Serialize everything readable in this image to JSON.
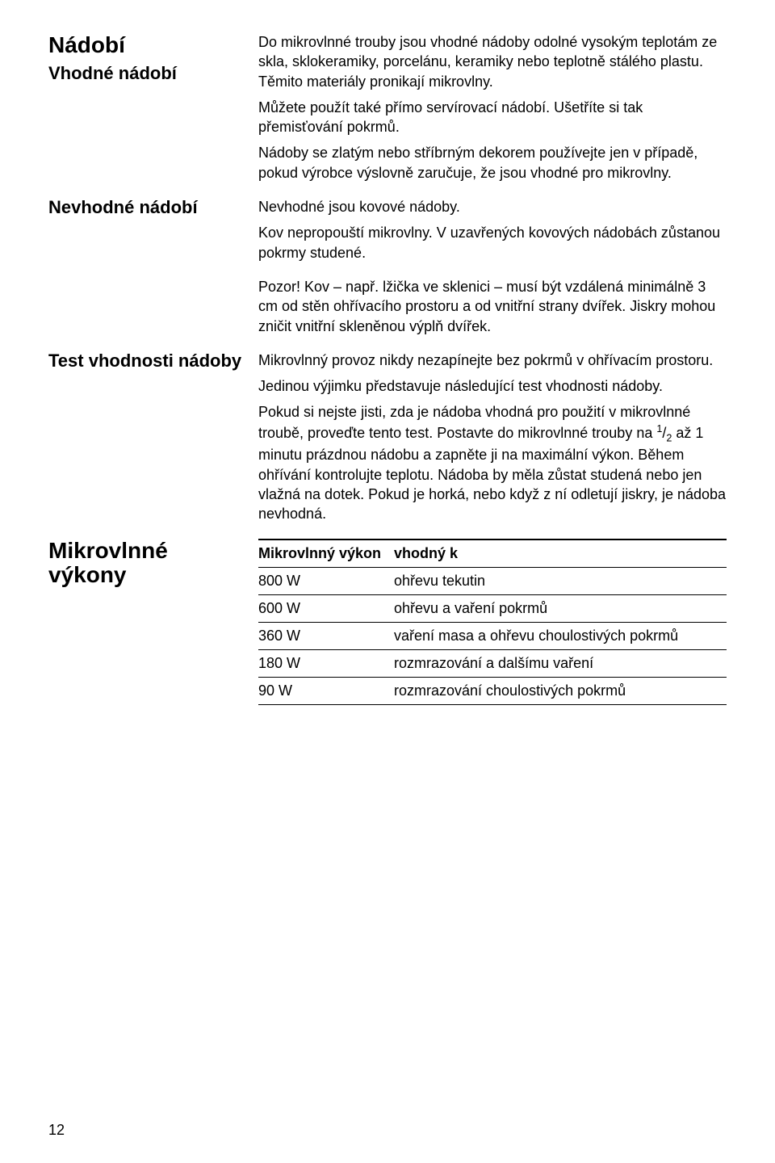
{
  "headings": {
    "main": "Nádobí",
    "suitable": "Vhodné nádobí",
    "unsuitable": "Nevhodné nádobí",
    "test": "Test vhodnosti nádoby",
    "powers": "Mikrovlnné výkony"
  },
  "suitable": {
    "p1": "Do mikrovlnné trouby jsou vhodné nádoby odolné vysokým teplotám ze skla, sklokeramiky, porcelánu, keramiky nebo teplotně stálého plastu. Těmito materiály pronikají mikrovlny.",
    "p2": "Můžete použít také přímo servírovací nádobí. Ušetříte si tak přemisťování pokrmů.",
    "p3": "Nádoby se zlatým nebo stříbrným dekorem používejte jen v případě, pokud výrobce výslovně zaručuje, že jsou vhodné pro mikrovlny."
  },
  "unsuitable": {
    "p1": "Nevhodné jsou kovové nádoby.",
    "p2": "Kov nepropouští mikrovlny. V uzavřených kovových nádobách zůstanou pokrmy studené.",
    "p3": "Pozor! Kov – např. lžička ve sklenici – musí být vzdálená minimálně 3 cm od stěn ohřívacího prostoru a od vnitřní strany dvířek. Jiskry mohou zničit vnitřní skleněnou výplň dvířek."
  },
  "test": {
    "p1": "Mikrovlnný provoz nikdy nezapínejte bez pokrmů v ohřívacím prostoru.",
    "p2": "Jedinou výjimku představuje následující test vhodnosti nádoby.",
    "p3_a": "Pokud si nejste jisti, zda je nádoba vhodná pro použití v mikrovlnné troubě, proveďte tento test. Postavte do mikrovlnné trouby na ",
    "p3_frac1": "1",
    "p3_slash": "/",
    "p3_frac2": "2",
    "p3_b": " až 1 minutu prázdnou nádobu a zapněte ji na maximální výkon. Během ohřívání kontrolujte teplotu. Nádoba by měla zůstat studená nebo jen vlažná na dotek. Pokud je horká, nebo když z ní odletují jiskry, je nádoba nevhodná."
  },
  "table": {
    "h1": "Mikrovlnný výkon",
    "h2": "vhodný k",
    "rows": [
      {
        "power": "800 W",
        "use": "ohřevu tekutin"
      },
      {
        "power": "600 W",
        "use": "ohřevu a vaření pokrmů"
      },
      {
        "power": "360 W",
        "use": "vaření masa a ohřevu choulostivých pokrmů"
      },
      {
        "power": "180 W",
        "use": "rozmrazování a dalšímu vaření"
      },
      {
        "power": "90 W",
        "use": "rozmrazování choulostivých pokrmů"
      }
    ]
  },
  "page_number": "12",
  "style": {
    "background": "#ffffff",
    "text_color": "#000000",
    "body_fontsize": 18,
    "heading_main_fontsize": 28,
    "heading_sub_fontsize": 22
  }
}
